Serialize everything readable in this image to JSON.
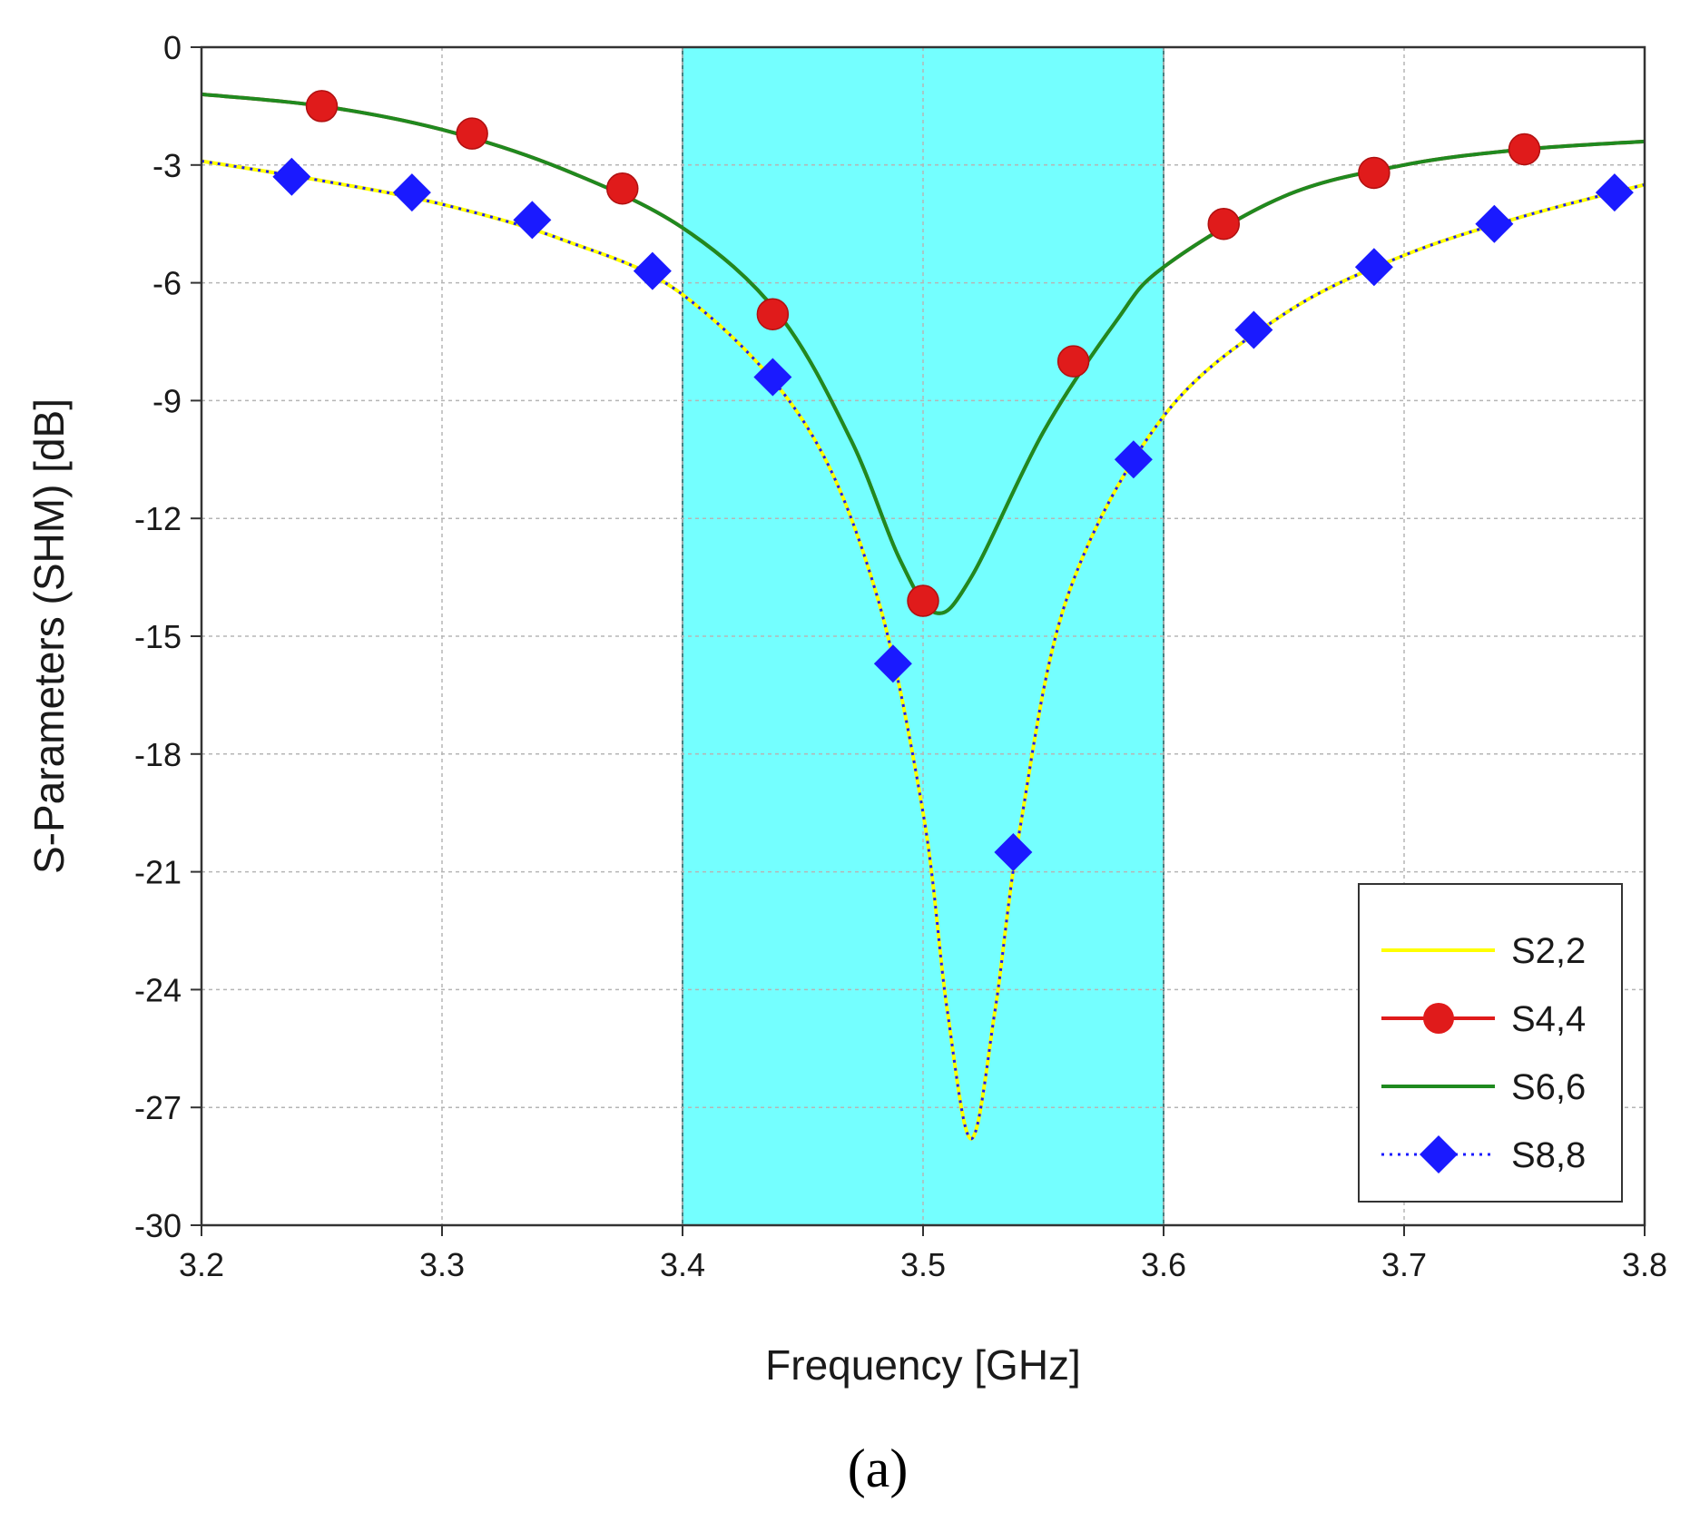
{
  "chart_data": {
    "type": "line",
    "xlabel": "Frequency [GHz]",
    "ylabel": "S-Parameters (SHM) [dB]",
    "xlim": [
      3.2,
      3.8
    ],
    "ylim": [
      -30,
      0
    ],
    "x_ticks": [
      3.2,
      3.3,
      3.4,
      3.5,
      3.6,
      3.7,
      3.8
    ],
    "x_tick_labels": [
      "3.2",
      "3.3",
      "3.4",
      "3.5",
      "3.6",
      "3.7",
      "3.8"
    ],
    "y_ticks": [
      0,
      -3,
      -6,
      -9,
      -12,
      -15,
      -18,
      -21,
      -24,
      -27,
      -30
    ],
    "y_tick_labels": [
      "0",
      "-3",
      "-6",
      "-9",
      "-12",
      "-15",
      "-18",
      "-21",
      "-24",
      "-27",
      "-30"
    ],
    "grid": true,
    "band": {
      "x_range": [
        3.4,
        3.6
      ],
      "color": "#74ffff"
    },
    "legend_position": "bottom-right",
    "caption": "(a)",
    "series": [
      {
        "name": "S2,2",
        "color": "#ffff00",
        "style": "solid",
        "marker": "none",
        "x": [
          3.2,
          3.25,
          3.3,
          3.35,
          3.4,
          3.45,
          3.48,
          3.5,
          3.51,
          3.52,
          3.53,
          3.54,
          3.56,
          3.6,
          3.65,
          3.7,
          3.75,
          3.8
        ],
        "y": [
          -2.9,
          -3.4,
          -4.0,
          -4.9,
          -6.3,
          -9.5,
          -13.8,
          -19.5,
          -24.5,
          -27.8,
          -24.5,
          -20.0,
          -14.0,
          -9.4,
          -6.8,
          -5.3,
          -4.3,
          -3.5
        ]
      },
      {
        "name": "S4,4",
        "color": "#e01b1b",
        "style": "solid",
        "marker": "circle",
        "x": [
          3.2,
          3.25,
          3.3,
          3.35,
          3.4,
          3.44,
          3.47,
          3.49,
          3.505,
          3.52,
          3.55,
          3.58,
          3.6,
          3.65,
          3.7,
          3.75,
          3.8
        ],
        "y": [
          -1.2,
          -1.5,
          -2.1,
          -3.1,
          -4.6,
          -6.8,
          -10.0,
          -13.0,
          -14.4,
          -13.5,
          -9.8,
          -7.0,
          -5.6,
          -3.8,
          -3.0,
          -2.6,
          -2.4
        ],
        "markers_x": [
          3.25,
          3.3125,
          3.375,
          3.4375,
          3.5,
          3.5625,
          3.625,
          3.6875,
          3.75
        ],
        "markers_y": [
          -1.5,
          -2.2,
          -3.6,
          -6.8,
          -14.1,
          -8.0,
          -4.5,
          -3.2,
          -2.6
        ]
      },
      {
        "name": "S6,6",
        "color": "#1f8a1f",
        "style": "solid",
        "marker": "none",
        "x": [
          3.2,
          3.25,
          3.3,
          3.35,
          3.4,
          3.44,
          3.47,
          3.49,
          3.505,
          3.52,
          3.55,
          3.58,
          3.6,
          3.65,
          3.7,
          3.75,
          3.8
        ],
        "y": [
          -1.2,
          -1.5,
          -2.1,
          -3.1,
          -4.6,
          -6.8,
          -10.0,
          -13.0,
          -14.4,
          -13.5,
          -9.8,
          -7.0,
          -5.6,
          -3.8,
          -3.0,
          -2.6,
          -2.4
        ]
      },
      {
        "name": "S8,8",
        "color": "#1a1aff",
        "style": "dotted",
        "marker": "diamond",
        "x": [
          3.2,
          3.25,
          3.3,
          3.35,
          3.4,
          3.45,
          3.48,
          3.5,
          3.51,
          3.52,
          3.53,
          3.54,
          3.56,
          3.6,
          3.65,
          3.7,
          3.75,
          3.8
        ],
        "y": [
          -2.9,
          -3.4,
          -4.0,
          -4.9,
          -6.3,
          -9.5,
          -13.8,
          -19.5,
          -24.5,
          -27.8,
          -24.5,
          -20.0,
          -14.0,
          -9.4,
          -6.8,
          -5.3,
          -4.3,
          -3.5
        ],
        "markers_x": [
          3.2375,
          3.2875,
          3.3375,
          3.3875,
          3.4375,
          3.4875,
          3.5375,
          3.5875,
          3.6375,
          3.6875,
          3.7375,
          3.7875
        ],
        "markers_y": [
          -3.3,
          -3.7,
          -4.4,
          -5.7,
          -8.4,
          -15.7,
          -20.5,
          -10.5,
          -7.2,
          -5.6,
          -4.5,
          -3.7
        ]
      }
    ]
  }
}
